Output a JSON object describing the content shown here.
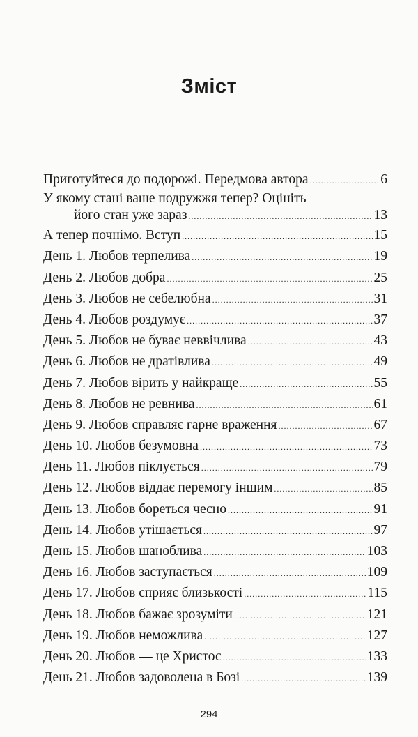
{
  "title": "Зміст",
  "entries": [
    {
      "label": "Приготуйтеся до подорожі. Передмова автора",
      "page": "6"
    },
    {
      "label": "У якому стані ваше подружжя тепер? Оцініть",
      "label_cont": "його стан уже зараз",
      "page": "13"
    },
    {
      "label": "А тепер почнімо. Вступ",
      "page": "15"
    },
    {
      "label": "День 1. Любов терпелива",
      "page": "19"
    },
    {
      "label": "День 2. Любов добра",
      "page": "25"
    },
    {
      "label": "День 3. Любов не себелюбна",
      "page": "31"
    },
    {
      "label": "День 4. Любов роздумує",
      "page": "37"
    },
    {
      "label": "День 5. Любов не буває неввічлива",
      "page": "43"
    },
    {
      "label": "День 6. Любов не дратівлива",
      "page": "49"
    },
    {
      "label": "День 7. Любов вірить у найкраще",
      "page": "55"
    },
    {
      "label": "День 8. Любов не ревнива",
      "page": "61"
    },
    {
      "label": "День 9. Любов справляє гарне враження",
      "page": "67"
    },
    {
      "label": "День 10. Любов безумовна",
      "page": "73"
    },
    {
      "label": "День 11. Любов піклується",
      "page": "79"
    },
    {
      "label": "День 12. Любов віддає перемогу іншим",
      "page": "85"
    },
    {
      "label": "День 13. Любов бореться чесно",
      "page": "91"
    },
    {
      "label": "День 14. Любов утішається",
      "page": "97"
    },
    {
      "label": "День 15. Любов шаноблива",
      "page": "103"
    },
    {
      "label": "День 16. Любов заступається",
      "page": "109"
    },
    {
      "label": "День 17. Любов сприяє близькості",
      "page": "115"
    },
    {
      "label": "День 18. Любов бажає зрозуміти",
      "page": "121"
    },
    {
      "label": "День 19. Любов неможлива",
      "page": "127"
    },
    {
      "label": "День 20. Любов — це Христос",
      "page": "133"
    },
    {
      "label": "День 21. Любов задоволена в Бозі",
      "page": "139"
    }
  ],
  "page_number": "294"
}
